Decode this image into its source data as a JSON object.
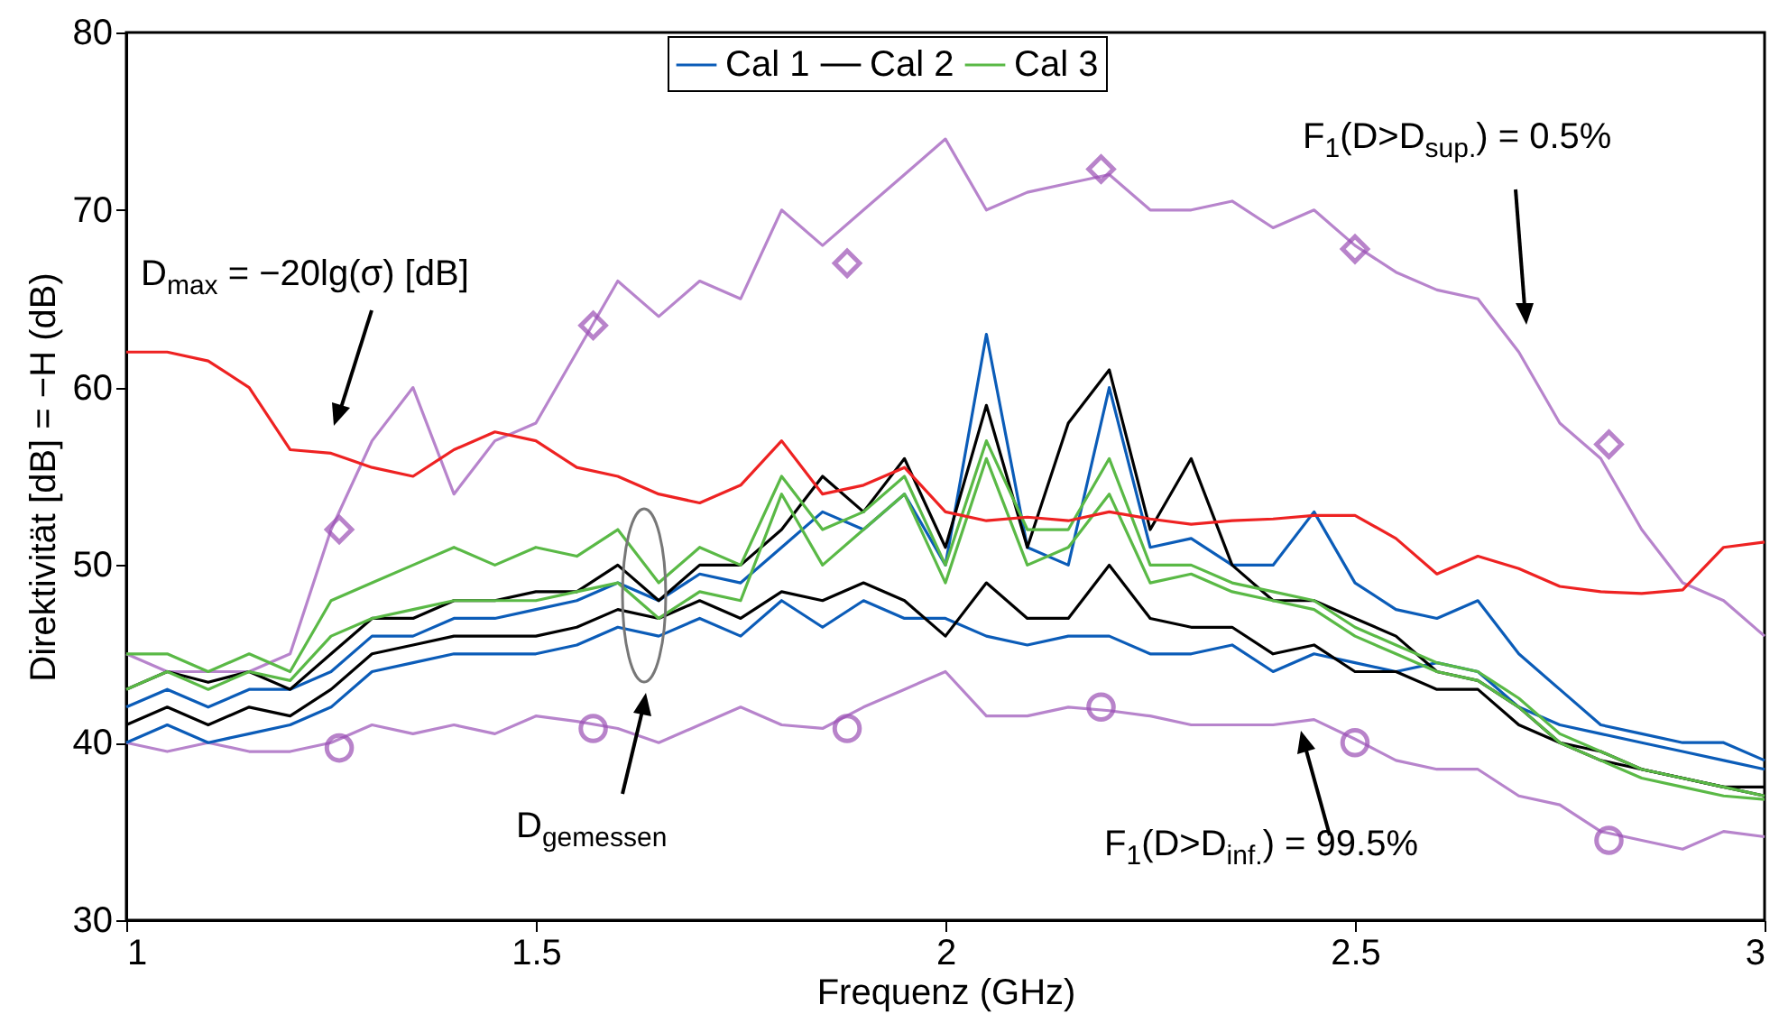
{
  "chart_data": {
    "type": "line",
    "xlabel": "Frequenz (GHz)",
    "ylabel": "Direktivität [dB] = −H (dB)",
    "x": [
      1.0,
      1.05,
      1.1,
      1.15,
      1.2,
      1.25,
      1.3,
      1.35,
      1.4,
      1.45,
      1.5,
      1.55,
      1.6,
      1.65,
      1.7,
      1.75,
      1.8,
      1.85,
      1.9,
      1.95,
      2.0,
      2.05,
      2.1,
      2.15,
      2.2,
      2.25,
      2.3,
      2.35,
      2.4,
      2.45,
      2.5,
      2.55,
      2.6,
      2.65,
      2.7,
      2.75,
      2.8,
      2.85,
      2.9,
      2.95,
      3.0
    ],
    "series": [
      {
        "color": "#b784cc",
        "values": [
          45,
          44,
          44,
          44,
          45,
          52,
          57,
          60,
          54,
          57,
          58,
          62,
          66,
          64,
          66,
          65,
          70,
          68,
          70,
          72,
          74,
          70,
          71,
          71.5,
          72,
          70,
          70,
          70.5,
          69,
          70,
          68,
          66.5,
          65.5,
          65,
          62,
          58,
          56,
          52,
          49,
          48,
          46
        ]
      },
      {
        "color": "#b784cc",
        "values": [
          40,
          39.5,
          40,
          39.5,
          39.5,
          40,
          41,
          40.5,
          41,
          40.5,
          41.5,
          41.2,
          40.8,
          40,
          41,
          42,
          41,
          40.8,
          42,
          43,
          44,
          41.5,
          41.5,
          42,
          41.8,
          41.5,
          41,
          41,
          41,
          41.3,
          40.2,
          39,
          38.5,
          38.5,
          37,
          36.5,
          35,
          34.5,
          34,
          35,
          34.7
        ]
      },
      {
        "name": "Cal 1",
        "color": "#0b5cb8",
        "values": [
          40,
          41,
          40,
          40.5,
          41,
          42,
          44,
          44.5,
          45,
          45,
          45,
          45.5,
          46.5,
          46,
          47,
          46,
          48,
          46.5,
          48,
          47,
          47,
          46,
          45.5,
          46,
          46,
          45,
          45,
          45.5,
          44,
          45,
          44.5,
          44,
          44.5,
          44,
          42,
          41,
          40.5,
          40,
          39.5,
          39,
          38.5
        ]
      },
      {
        "color": "#0b5cb8",
        "values": [
          42,
          43,
          42,
          43,
          43,
          44,
          46,
          46,
          47,
          47,
          47.5,
          48,
          49,
          48,
          49.5,
          49,
          51,
          53,
          52,
          54,
          50,
          63,
          51,
          50,
          60,
          51,
          51.5,
          50,
          50,
          53,
          49,
          47.5,
          47,
          48,
          45,
          43,
          41,
          40.5,
          40,
          40,
          39
        ]
      },
      {
        "name": "Cal 2",
        "color": "#000000",
        "values": [
          41,
          42,
          41,
          42,
          41.5,
          43,
          45,
          45.5,
          46,
          46,
          46,
          46.5,
          47.5,
          47,
          48,
          47,
          48.5,
          48,
          49,
          48,
          46,
          49,
          47,
          47,
          50,
          47,
          46.5,
          46.5,
          45,
          45.5,
          44,
          44,
          43,
          43,
          41,
          40,
          39,
          38.5,
          38,
          37.5,
          37.5
        ]
      },
      {
        "color": "#000000",
        "values": [
          43,
          44,
          43.4,
          44,
          43,
          45,
          47,
          47,
          48,
          48,
          48.5,
          48.5,
          50,
          48,
          50,
          50,
          52,
          55,
          53,
          56,
          51,
          59,
          51,
          58,
          61,
          52,
          56,
          50,
          48,
          48,
          47,
          46,
          44,
          43.5,
          42,
          40,
          39.5,
          38.5,
          38,
          37.5,
          37
        ]
      },
      {
        "name": "Cal 3",
        "color": "#5ab946",
        "values": [
          43,
          44,
          43,
          44,
          43.5,
          46,
          47,
          47.5,
          48,
          48,
          48,
          48.5,
          49,
          47,
          48.5,
          48,
          54,
          50,
          52,
          54,
          49,
          56,
          50,
          51,
          54,
          49,
          49.5,
          48.5,
          48,
          47.5,
          46,
          45,
          44,
          43.5,
          42,
          40,
          39,
          38,
          37.5,
          37,
          36.8
        ]
      },
      {
        "color": "#5ab946",
        "values": [
          45,
          45,
          44,
          45,
          44,
          48,
          49,
          50,
          51,
          50,
          51,
          50.5,
          52,
          49,
          51,
          50,
          55,
          52,
          53,
          55,
          50,
          57,
          52,
          52,
          56,
          50,
          50,
          49,
          48.5,
          48,
          46.5,
          45.5,
          44.5,
          44,
          42.5,
          40.5,
          39.5,
          38.5,
          38,
          37.5,
          37
        ]
      },
      {
        "color": "#ee2222",
        "values": [
          62,
          62,
          61.5,
          60,
          56.5,
          56.3,
          55.5,
          55,
          56.5,
          57.5,
          57,
          55.5,
          55,
          54,
          53.5,
          54.5,
          57,
          54,
          54.5,
          55.5,
          53,
          52.5,
          52.7,
          52.5,
          53,
          52.6,
          52.3,
          52.5,
          52.6,
          52.8,
          52.8,
          51.5,
          49.5,
          50.5,
          49.8,
          48.8,
          48.5,
          48.4,
          48.6,
          51,
          51.3
        ]
      },
      {
        "type": "scatter",
        "marker": "diamond",
        "color": "#9b4fb5",
        "x": [
          1.26,
          1.57,
          1.88,
          2.19,
          2.5,
          2.81
        ],
        "values": [
          52,
          63.5,
          67,
          72.3,
          67.8,
          56.8
        ]
      },
      {
        "type": "scatter",
        "marker": "circle",
        "color": "#9b4fb5",
        "x": [
          1.26,
          1.57,
          1.88,
          2.19,
          2.5,
          2.81
        ],
        "values": [
          39.7,
          40.8,
          40.8,
          42,
          40,
          34.5
        ]
      }
    ],
    "xlim": [
      1,
      3
    ],
    "xticks": [
      1,
      1.5,
      2,
      2.5,
      3
    ],
    "ylim": [
      30,
      80
    ],
    "yticks": [
      30,
      40,
      50,
      60,
      70,
      80
    ],
    "grid": false,
    "legend": "top",
    "marker": "none",
    "line_style": "solid",
    "annotations": [
      "D$_{max}$ = −20lg(σ) [dB]",
      "D$_{gemessen}$",
      "F$_{1}$(D>D$_{sup.}$) = 0.5%",
      "F$_{1}$(D>D$_{inf.}$) = 99.5%"
    ]
  }
}
